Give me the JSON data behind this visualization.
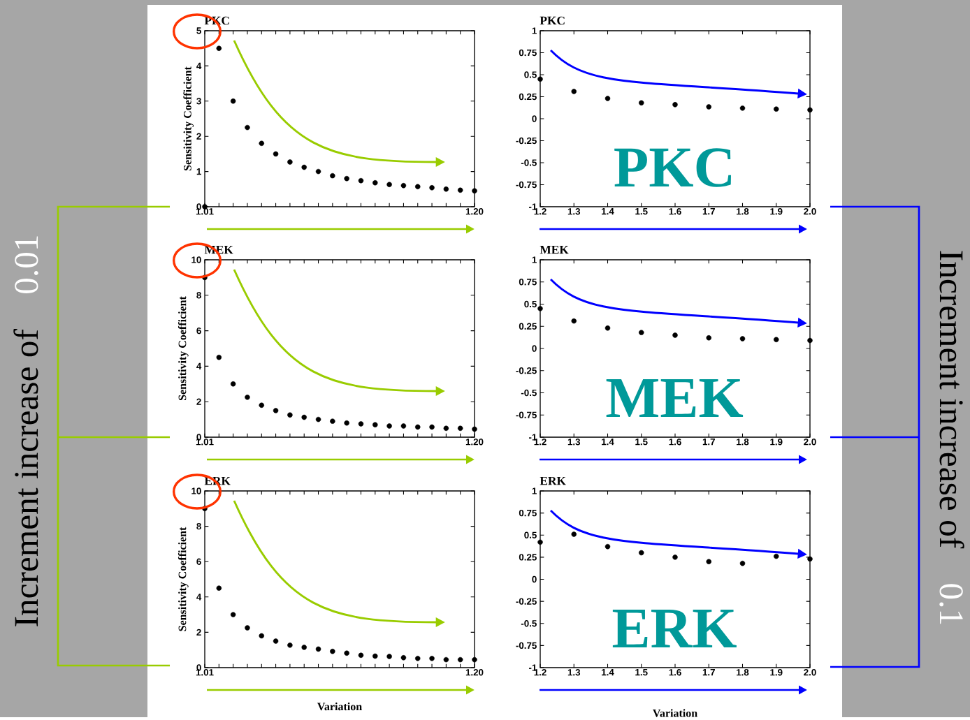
{
  "chart_data": [
    {
      "type": "scatter",
      "title": "PKC",
      "ylabel": "Sensitivity Coefficient",
      "annotations": [
        "PKC",
        "Increment increase of",
        "0.01"
      ],
      "marker": "circle",
      "color": "#000000",
      "x": [
        1.01,
        1.02,
        1.03,
        1.04,
        1.05,
        1.06,
        1.07,
        1.08,
        1.09,
        1.1,
        1.11,
        1.12,
        1.13,
        1.14,
        1.15,
        1.16,
        1.17,
        1.18,
        1.19,
        1.2
      ],
      "values": [
        0,
        4.5,
        3.0,
        2.25,
        1.8,
        1.5,
        1.27,
        1.12,
        1.0,
        0.88,
        0.8,
        0.74,
        0.68,
        0.63,
        0.6,
        0.57,
        0.54,
        0.5,
        0.47,
        0.45
      ],
      "xlim": [
        1.01,
        1.2
      ],
      "ylim": [
        0,
        5
      ],
      "xticks": [
        1.01,
        {
          "value": 1.02,
          "label": null
        },
        {
          "value": 1.03,
          "label": null
        },
        {
          "value": 1.04,
          "label": null
        },
        {
          "value": 1.05,
          "label": null
        },
        {
          "value": 1.06,
          "label": null
        },
        {
          "value": 1.07,
          "label": null
        },
        {
          "value": 1.08,
          "label": null
        },
        {
          "value": 1.09,
          "label": null
        },
        {
          "value": 1.1,
          "label": null
        },
        {
          "value": 1.11,
          "label": null
        },
        {
          "value": 1.12,
          "label": null
        },
        {
          "value": 1.13,
          "label": null
        },
        {
          "value": 1.14,
          "label": null
        },
        {
          "value": 1.15,
          "label": null
        },
        {
          "value": 1.16,
          "label": null
        },
        {
          "value": 1.17,
          "label": null
        },
        {
          "value": 1.18,
          "label": null
        },
        {
          "value": 1.19,
          "label": null
        },
        {
          "value": 1.2,
          "label": "1.20"
        }
      ],
      "yticks": [
        0,
        1,
        2,
        3,
        4,
        5
      ]
    },
    {
      "type": "scatter",
      "title": "PKC",
      "annotations": [
        "Increment increase of",
        "0.1"
      ],
      "marker": "circle",
      "color": "#000000",
      "x": [
        1.2,
        1.3,
        1.4,
        1.5,
        1.6,
        1.7,
        1.8,
        1.9,
        2.0
      ],
      "values": [
        0.45,
        0.31,
        0.23,
        0.18,
        0.16,
        0.135,
        0.12,
        0.11,
        0.1
      ],
      "xlim": [
        1.2,
        2.0
      ],
      "ylim": [
        -1,
        1
      ],
      "xticks": [
        1.2,
        1.3,
        1.4,
        1.5,
        1.6,
        1.7,
        1.8,
        1.9,
        {
          "value": 2.0,
          "label": "2.0"
        }
      ],
      "yticks": [
        -1,
        -0.75,
        -0.5,
        -0.25,
        0,
        0.25,
        0.5,
        0.75,
        1
      ]
    },
    {
      "type": "scatter",
      "title": "MEK",
      "ylabel": "Sensitivity Coefficient",
      "annotations": [
        "MEK"
      ],
      "marker": "circle",
      "color": "#000000",
      "x": [
        1.01,
        1.02,
        1.03,
        1.04,
        1.05,
        1.06,
        1.07,
        1.08,
        1.09,
        1.1,
        1.11,
        1.12,
        1.13,
        1.14,
        1.15,
        1.16,
        1.17,
        1.18,
        1.19,
        1.2
      ],
      "values": [
        9.0,
        4.5,
        3.0,
        2.25,
        1.8,
        1.5,
        1.25,
        1.12,
        1.0,
        0.9,
        0.8,
        0.75,
        0.7,
        0.63,
        0.63,
        0.57,
        0.57,
        0.5,
        0.5,
        0.45
      ],
      "xlim": [
        1.01,
        1.2
      ],
      "ylim": [
        0,
        10
      ],
      "xticks": [
        1.01,
        {
          "value": 1.02,
          "label": null
        },
        {
          "value": 1.03,
          "label": null
        },
        {
          "value": 1.04,
          "label": null
        },
        {
          "value": 1.05,
          "label": null
        },
        {
          "value": 1.06,
          "label": null
        },
        {
          "value": 1.07,
          "label": null
        },
        {
          "value": 1.08,
          "label": null
        },
        {
          "value": 1.09,
          "label": null
        },
        {
          "value": 1.1,
          "label": null
        },
        {
          "value": 1.11,
          "label": null
        },
        {
          "value": 1.12,
          "label": null
        },
        {
          "value": 1.13,
          "label": null
        },
        {
          "value": 1.14,
          "label": null
        },
        {
          "value": 1.15,
          "label": null
        },
        {
          "value": 1.16,
          "label": null
        },
        {
          "value": 1.17,
          "label": null
        },
        {
          "value": 1.18,
          "label": null
        },
        {
          "value": 1.19,
          "label": null
        },
        {
          "value": 1.2,
          "label": "1.20"
        }
      ],
      "yticks": [
        0,
        2,
        4,
        6,
        8,
        10
      ]
    },
    {
      "type": "scatter",
      "title": "MEK",
      "marker": "circle",
      "color": "#000000",
      "x": [
        1.2,
        1.3,
        1.4,
        1.5,
        1.6,
        1.7,
        1.8,
        1.9,
        2.0
      ],
      "values": [
        0.45,
        0.31,
        0.23,
        0.18,
        0.15,
        0.12,
        0.11,
        0.1,
        0.09
      ],
      "xlim": [
        1.2,
        2.0
      ],
      "ylim": [
        -1,
        1
      ],
      "xticks": [
        1.2,
        1.3,
        1.4,
        1.5,
        1.6,
        1.7,
        1.8,
        1.9,
        {
          "value": 2.0,
          "label": "2.0"
        }
      ],
      "yticks": [
        -1,
        -0.75,
        -0.5,
        -0.25,
        0,
        0.25,
        0.5,
        0.75,
        1
      ]
    },
    {
      "type": "scatter",
      "title": "ERK",
      "ylabel": "Sensitivity Coefficient",
      "xlabel": "Variation",
      "annotations": [
        "ERK"
      ],
      "marker": "circle",
      "color": "#000000",
      "x": [
        1.01,
        1.02,
        1.03,
        1.04,
        1.05,
        1.06,
        1.07,
        1.08,
        1.09,
        1.1,
        1.11,
        1.12,
        1.13,
        1.14,
        1.15,
        1.16,
        1.17,
        1.18,
        1.19,
        1.2
      ],
      "values": [
        9.0,
        4.5,
        3.0,
        2.25,
        1.8,
        1.5,
        1.27,
        1.15,
        1.05,
        0.92,
        0.82,
        0.7,
        0.65,
        0.63,
        0.56,
        0.52,
        0.52,
        0.45,
        0.45,
        0.45
      ],
      "xlim": [
        1.01,
        1.2
      ],
      "ylim": [
        0,
        10
      ],
      "xticks": [
        1.01,
        {
          "value": 1.02,
          "label": null
        },
        {
          "value": 1.03,
          "label": null
        },
        {
          "value": 1.04,
          "label": null
        },
        {
          "value": 1.05,
          "label": null
        },
        {
          "value": 1.06,
          "label": null
        },
        {
          "value": 1.07,
          "label": null
        },
        {
          "value": 1.08,
          "label": null
        },
        {
          "value": 1.09,
          "label": null
        },
        {
          "value": 1.1,
          "label": null
        },
        {
          "value": 1.11,
          "label": null
        },
        {
          "value": 1.12,
          "label": null
        },
        {
          "value": 1.13,
          "label": null
        },
        {
          "value": 1.14,
          "label": null
        },
        {
          "value": 1.15,
          "label": null
        },
        {
          "value": 1.16,
          "label": null
        },
        {
          "value": 1.17,
          "label": null
        },
        {
          "value": 1.18,
          "label": null
        },
        {
          "value": 1.19,
          "label": null
        },
        {
          "value": 1.2,
          "label": "1.20"
        }
      ],
      "yticks": [
        0,
        2,
        4,
        6,
        8,
        10
      ]
    },
    {
      "type": "scatter",
      "title": "ERK",
      "xlabel": "Variation",
      "marker": "circle",
      "color": "#000000",
      "x": [
        1.2,
        1.3,
        1.4,
        1.5,
        1.6,
        1.7,
        1.8,
        1.9,
        2.0
      ],
      "values": [
        0.42,
        0.51,
        0.37,
        0.3,
        0.25,
        0.2,
        0.18,
        0.26,
        0.23
      ],
      "xlim": [
        1.2,
        2.0
      ],
      "ylim": [
        -1,
        1
      ],
      "xticks": [
        1.2,
        1.3,
        1.4,
        1.5,
        1.6,
        1.7,
        1.8,
        1.9,
        {
          "value": 2.0,
          "label": "2.0"
        }
      ],
      "yticks": [
        -1,
        -0.75,
        -0.5,
        -0.25,
        0,
        0.25,
        0.5,
        0.75,
        1
      ]
    }
  ]
}
